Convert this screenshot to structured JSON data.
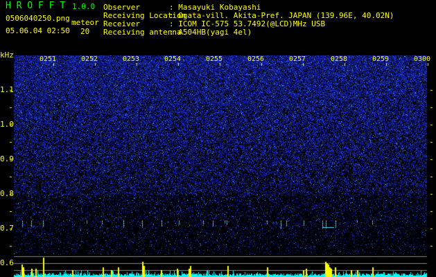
{
  "app": {
    "title": "H R O F F T",
    "version": "1.0.0"
  },
  "file": {
    "name": "0506040250.png",
    "datetime": "05.06.04 02:50"
  },
  "meteor": {
    "label": "meteor",
    "count": "20"
  },
  "info": [
    {
      "label": "Observer",
      "value": ": Masayuki Kobayashi"
    },
    {
      "label": "Receiving Location",
      "value": ": Ogata-vill. Akita-Pref. JAPAN (139.96E, 40.02N)"
    },
    {
      "label": "Receiver",
      "value": ": ICOM IC-575 53.7492(@LCD)MHz USB"
    },
    {
      "label": "Receiving antenna",
      "value": ": A504HB(yagi 4el)"
    }
  ],
  "axis": {
    "unit": "kHz",
    "y_labels": [
      "1.1",
      "1.0",
      "0.9",
      "0.8",
      "0.7",
      "0.6"
    ],
    "time_labels": [
      "0251",
      "0252",
      "0253",
      "0254",
      "0255",
      "0256",
      "0257",
      "0258",
      "0259",
      "0300"
    ]
  },
  "colors": {
    "text": "#ffff00",
    "title": "#00ff00",
    "noise": "#1a2ad0",
    "echo_bar": "#ffff00",
    "noise_bar": "#00ffff"
  }
}
